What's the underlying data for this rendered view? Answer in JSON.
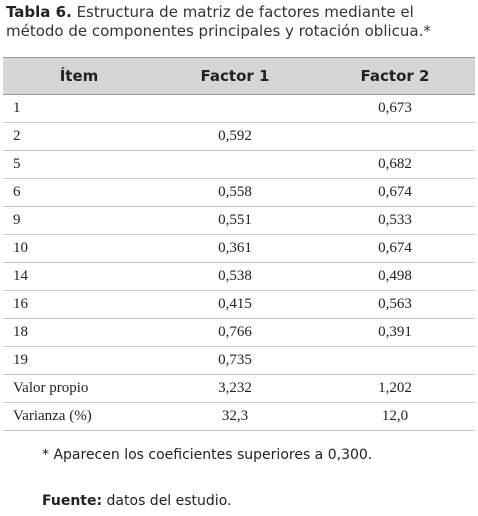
{
  "title": {
    "label": "Tabla 6.",
    "text": "Estructura de matriz de factores mediante el método de componentes principales y rotación oblicua.*"
  },
  "table": {
    "header": [
      "Ítem",
      "Factor 1",
      "Factor 2"
    ],
    "rows": [
      [
        "1",
        null,
        "0,673"
      ],
      [
        "2",
        "0,592",
        null
      ],
      [
        "5",
        null,
        "0,682"
      ],
      [
        "6",
        "0,558",
        "0,674"
      ],
      [
        "9",
        "0,551",
        "0,533"
      ],
      [
        "10",
        "0,361",
        "0,674"
      ],
      [
        "14",
        "0,538",
        "0,498"
      ],
      [
        "16",
        "0,415",
        "0,563"
      ],
      [
        "18",
        "0,766",
        "0,391"
      ],
      [
        "19",
        "0,735",
        null
      ],
      [
        "Valor propio",
        "3,232",
        "1,202"
      ],
      [
        "Varianza (%)",
        "32,3",
        "12,0"
      ]
    ]
  },
  "footnote": "* Aparecen los coeficientes superiores a 0,300.",
  "source": {
    "label": "Fuente:",
    "text": "datos del estudio."
  }
}
